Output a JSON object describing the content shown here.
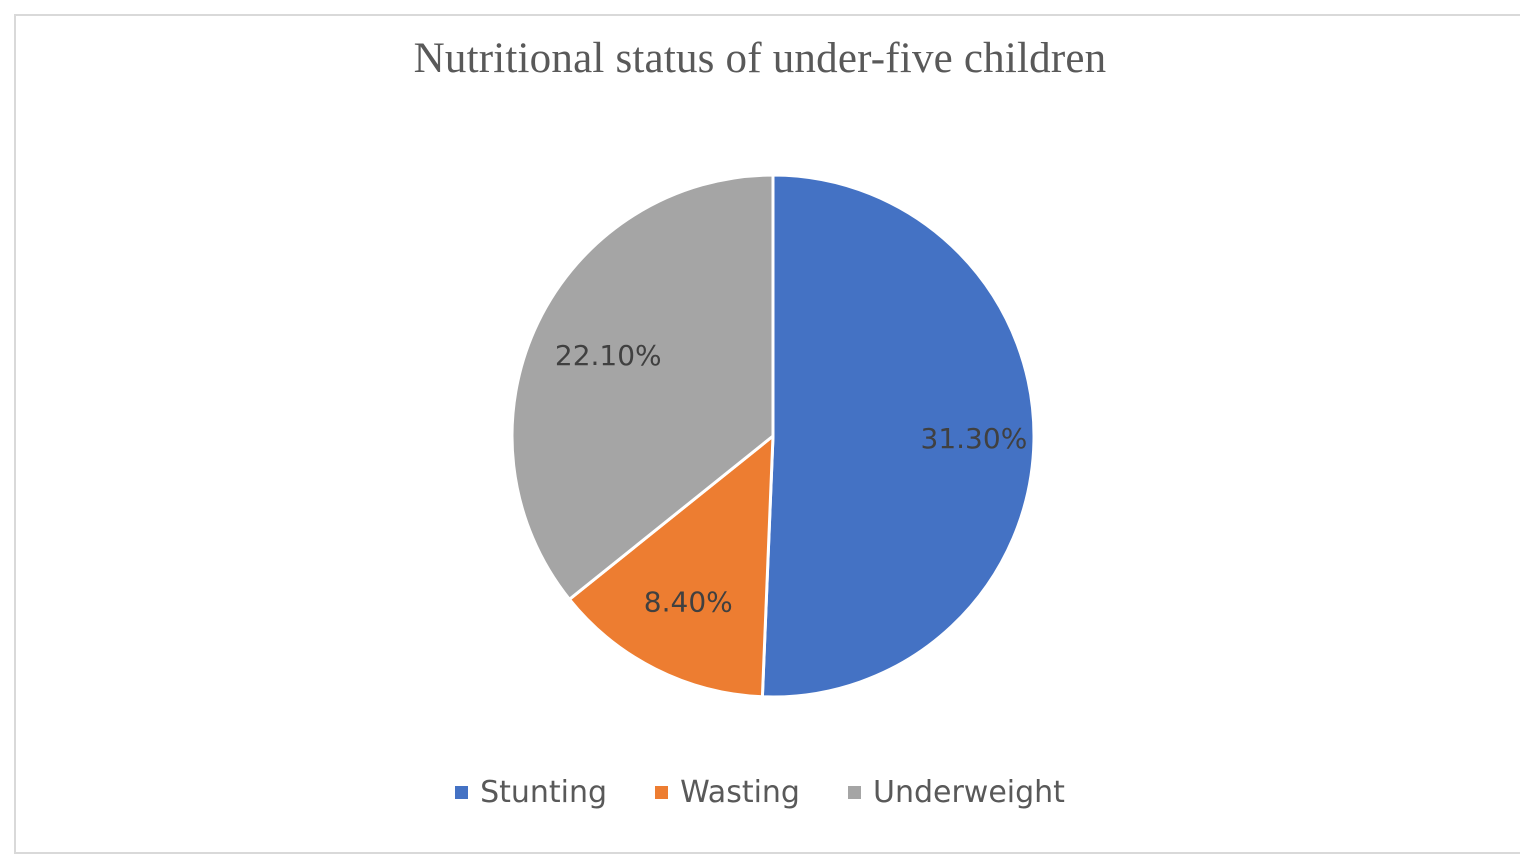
{
  "chart_data": {
    "type": "pie",
    "title": "Nutritional status of under-five children",
    "slices": [
      {
        "label": "Stunting",
        "value": 31.3,
        "value_label": "31.30%",
        "color": "#4472C4"
      },
      {
        "label": "Wasting",
        "value": 8.4,
        "value_label": "8.40%",
        "color": "#ED7D31"
      },
      {
        "label": "Underweight",
        "value": 22.1,
        "value_label": "22.10%",
        "color": "#A5A5A5"
      }
    ],
    "start_angle": "12 o'clock, clockwise",
    "legend_position": "bottom",
    "data_labels": "inside"
  }
}
